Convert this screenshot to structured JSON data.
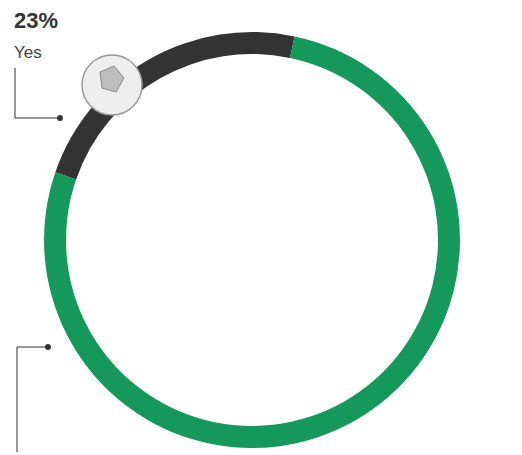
{
  "chart_data": {
    "type": "donut",
    "categories": [
      "Yes",
      null
    ],
    "values": [
      23,
      77
    ],
    "value_labels": [
      "23%",
      null
    ],
    "colors": [
      "#333333",
      "#15995b"
    ],
    "data_labels": true
  }
}
